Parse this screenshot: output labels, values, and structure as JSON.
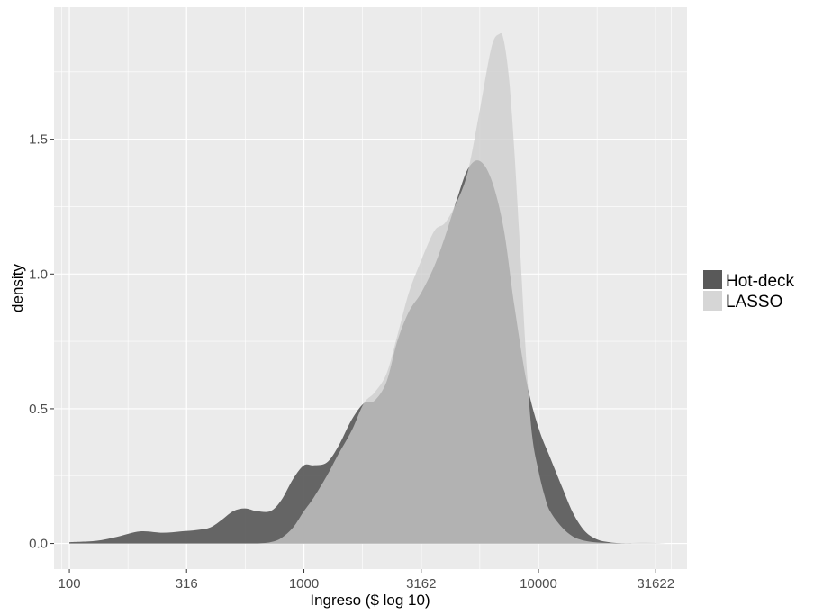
{
  "chart_data": {
    "type": "area",
    "xlabel": "Ingreso ($ log 10)",
    "ylabel": "density",
    "x_scale": "log10",
    "xlim": [
      86,
      43000
    ],
    "ylim": [
      -0.095,
      1.99
    ],
    "x_ticks": [
      {
        "value": 100,
        "label": "100"
      },
      {
        "value": 316,
        "label": "316"
      },
      {
        "value": 1000,
        "label": "1000"
      },
      {
        "value": 3162,
        "label": "3162"
      },
      {
        "value": 10000,
        "label": "10000"
      },
      {
        "value": 31622,
        "label": "31622"
      }
    ],
    "y_ticks": [
      {
        "value": 0.0,
        "label": "0.0"
      },
      {
        "value": 0.5,
        "label": "0.5"
      },
      {
        "value": 1.0,
        "label": "1.0"
      },
      {
        "value": 1.5,
        "label": "1.5"
      }
    ],
    "grid": true,
    "legend_position": "right",
    "colors": {
      "panel": "#ebebeb",
      "grid": "#ffffff",
      "tick": "#4d4d4d"
    },
    "series": [
      {
        "name": "Hot-deck",
        "color": "#595959",
        "opacity": 0.92,
        "x": [
          100,
          130,
          160,
          200,
          250,
          300,
          350,
          400,
          450,
          500,
          560,
          630,
          720,
          800,
          900,
          1000,
          1100,
          1250,
          1400,
          1600,
          1800,
          2000,
          2250,
          2500,
          2800,
          3162,
          3600,
          4000,
          4500,
          5000,
          5600,
          6300,
          7100,
          7900,
          8900,
          10000,
          11200,
          12600,
          14100,
          15800,
          17800,
          20000,
          22400,
          25000
        ],
        "y": [
          0.005,
          0.01,
          0.025,
          0.045,
          0.04,
          0.045,
          0.05,
          0.06,
          0.09,
          0.12,
          0.13,
          0.12,
          0.12,
          0.16,
          0.24,
          0.29,
          0.29,
          0.3,
          0.36,
          0.46,
          0.52,
          0.53,
          0.6,
          0.75,
          0.86,
          0.93,
          1.03,
          1.14,
          1.28,
          1.39,
          1.42,
          1.35,
          1.17,
          0.88,
          0.6,
          0.43,
          0.32,
          0.21,
          0.11,
          0.045,
          0.015,
          0.005,
          0.001,
          0.0
        ]
      },
      {
        "name": "LASSO",
        "color": "#cccccc",
        "opacity": 0.75,
        "x": [
          630,
          720,
          800,
          900,
          1000,
          1100,
          1250,
          1400,
          1600,
          1800,
          2000,
          2250,
          2500,
          2800,
          3162,
          3600,
          4000,
          4500,
          5000,
          5600,
          6300,
          6800,
          7100,
          7500,
          7900,
          8400,
          8900,
          9400,
          10000,
          10600,
          11200,
          12600,
          14100,
          15800,
          17800,
          20000,
          22400,
          25000,
          28000,
          31622,
          35000
        ],
        "y": [
          0.0,
          0.005,
          0.02,
          0.06,
          0.12,
          0.17,
          0.25,
          0.33,
          0.42,
          0.52,
          0.56,
          0.63,
          0.77,
          0.93,
          1.05,
          1.16,
          1.19,
          1.27,
          1.38,
          1.6,
          1.84,
          1.89,
          1.87,
          1.72,
          1.45,
          1.05,
          0.66,
          0.4,
          0.27,
          0.18,
          0.12,
          0.06,
          0.025,
          0.01,
          0.004,
          0.002,
          0.001,
          0.002,
          0.003,
          0.002,
          0.0
        ]
      }
    ]
  }
}
